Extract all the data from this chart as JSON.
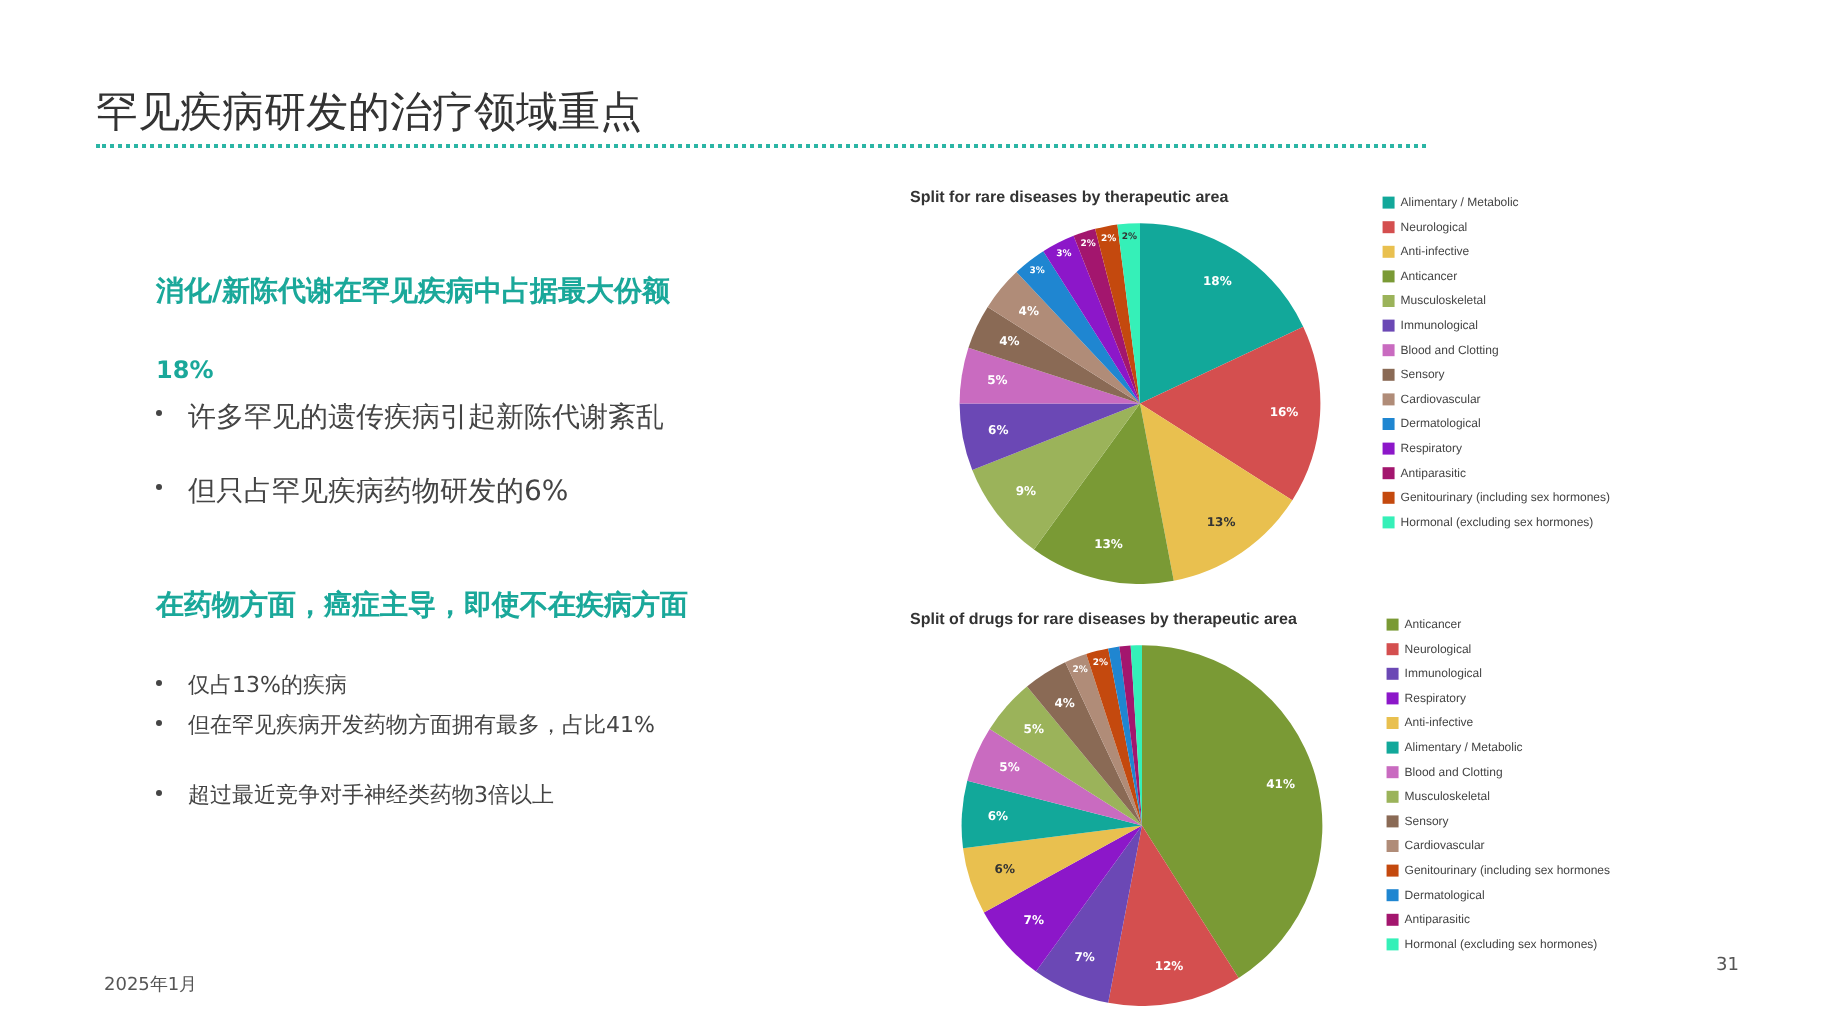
{
  "chart_data": [
    {
      "type": "other",
      "title": "罕见疾病研发的治疗领域重点",
      "annotations": [
        "消化/新陈代谢在罕见疾病中占据最大份额",
        "18%",
        "许多罕见的遗传疾病引起新陈代谢紊乱",
        "但只占罕见疾病药物研发的6%",
        "在药物方面，癌症主导，即使不在疾病方面",
        "仅占13%的疾病",
        "但在罕见疾病开发药物方面拥有最多，占比41%",
        "超过最近竞争对手神经类药物3倍以上",
        "2025年1月",
        "31"
      ]
    },
    {
      "type": "pie",
      "title": "Split for rare diseases by therapeutic area",
      "legend": "right",
      "categories": [
        "Alimentary / Metabolic",
        "Neurological",
        "Anti-infective",
        "Anticancer",
        "Musculoskeletal",
        "Immunological",
        "Blood and Clotting",
        "Sensory",
        "Cardiovascular",
        "Dermatological",
        "Respiratory",
        "Antiparasitic",
        "Genitourinary (including sex hormones)",
        "Hormonal (excluding sex hormones)"
      ],
      "values": [
        18,
        16,
        13,
        13,
        9,
        6,
        5,
        4,
        4,
        3,
        3,
        2,
        2,
        2
      ],
      "value_labels": [
        "18%",
        "16%",
        "13%",
        "13%",
        "9%",
        "6%",
        "5%",
        "4%",
        "4%",
        "3%",
        "3%",
        "2%",
        "2%",
        "2%"
      ],
      "colors": [
        "#12a89a",
        "#d44f4f",
        "#e9c04f",
        "#7a9a35",
        "#9bb35a",
        "#6b48b5",
        "#c96bc0",
        "#8a6a55",
        "#b08c78",
        "#1f86d1",
        "#8c17c9",
        "#a3166e",
        "#c4490e",
        "#35f0b8"
      ]
    },
    {
      "type": "pie",
      "title": "Split of drugs for rare diseases by therapeutic area",
      "legend": "right",
      "categories": [
        "Anticancer",
        "Neurological",
        "Immunological",
        "Respiratory",
        "Anti-infective",
        "Alimentary / Metabolic",
        "Blood and Clotting",
        "Musculoskeletal",
        "Sensory",
        "Cardiovascular",
        "Genitourinary (including sex hormones",
        "Dermatological",
        "Antiparasitic",
        "Hormonal (excluding sex hormones)"
      ],
      "values": [
        41,
        12,
        7,
        7,
        6,
        6,
        5,
        5,
        4,
        2,
        2,
        1,
        1,
        1
      ],
      "value_labels": [
        "41%",
        "12%",
        "7%",
        "7%",
        "6%",
        "6%",
        "5%",
        "5%",
        "4%",
        "2%",
        "2%",
        null,
        null,
        null
      ],
      "colors": [
        "#7a9a35",
        "#d44f4f",
        "#6b48b5",
        "#8c17c9",
        "#e9c04f",
        "#12a89a",
        "#c96bc0",
        "#9bb35a",
        "#8a6a55",
        "#b08c78",
        "#c4490e",
        "#1f86d1",
        "#a3166e",
        "#35f0b8"
      ]
    }
  ]
}
